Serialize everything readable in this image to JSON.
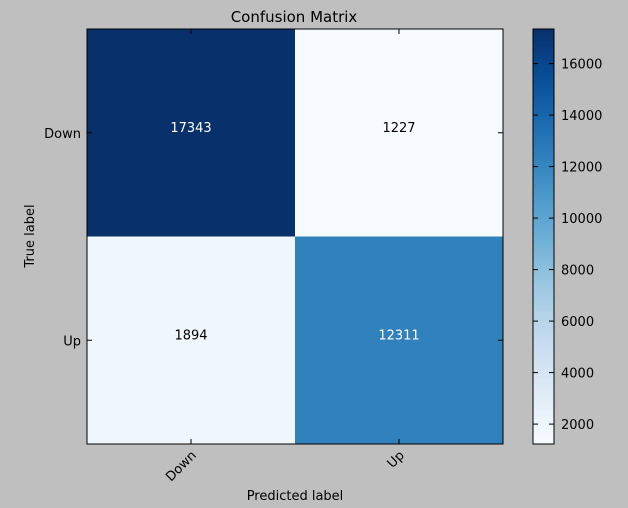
{
  "chart_data": {
    "type": "heatmap",
    "title": "Confusion Matrix",
    "xlabel": "Predicted label",
    "ylabel": "True label",
    "x_categories": [
      "Down",
      "Up"
    ],
    "y_categories": [
      "Down",
      "Up"
    ],
    "values": [
      [
        17343,
        1227
      ],
      [
        1894,
        12311
      ]
    ],
    "colormap": "Blues",
    "colorbar": {
      "range": [
        1227,
        17343
      ],
      "ticks": [
        2000,
        4000,
        6000,
        8000,
        10000,
        12000,
        14000,
        16000
      ]
    },
    "x_tick_rotation_deg": 45,
    "grid": false
  },
  "colors": {
    "background": "#bfbfbf",
    "plot_frame": "#000000",
    "text_dark": "#000000",
    "text_light": "#ffffff"
  }
}
